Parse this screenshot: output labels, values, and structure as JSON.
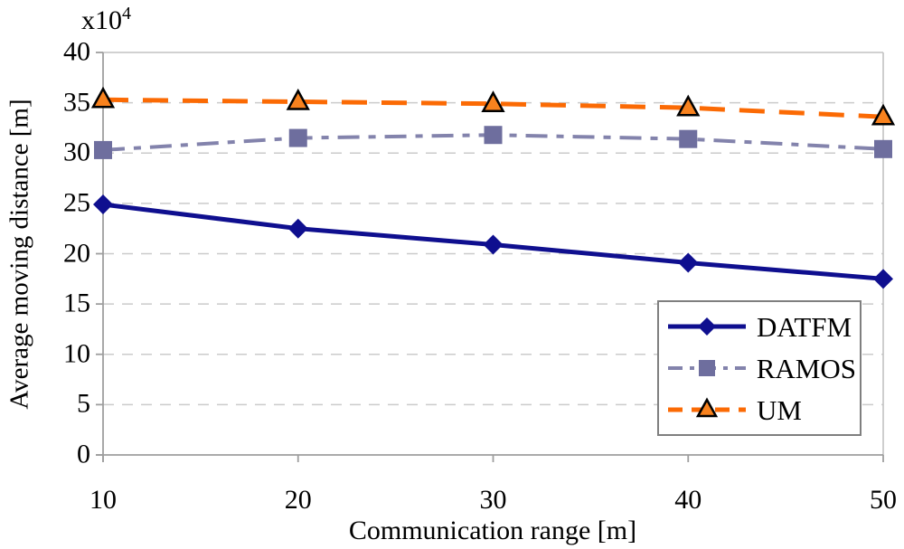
{
  "figure": {
    "background": "#FFFFFF",
    "unit_label": {
      "base": "x10",
      "exponent": "4"
    }
  },
  "chart_data": {
    "type": "line",
    "title": "",
    "xlabel": "Communication range [m]",
    "ylabel": "Average moving distance [m]",
    "y_unit_note": "values are in units of 10^4 m, axis annotated x10^4",
    "x": [
      10,
      20,
      30,
      40,
      50
    ],
    "xticks": [
      "10",
      "20",
      "30",
      "40",
      "50"
    ],
    "yticks": [
      "0",
      "5",
      "10",
      "15",
      "20",
      "25",
      "30",
      "35",
      "40"
    ],
    "ytick_values": [
      0,
      5,
      10,
      15,
      20,
      25,
      30,
      35,
      40
    ],
    "xlim": [
      10,
      50
    ],
    "ylim": [
      0,
      40
    ],
    "grid": "horizontal dashed gridlines",
    "legend_position": "lower right",
    "axis_color": "#9E9E9E",
    "frame_color": "#C2C2C2",
    "gridline_color": "#CBCBCB",
    "series": [
      {
        "name": "DATFM",
        "values": [
          24.9,
          22.5,
          20.9,
          19.1,
          17.5
        ],
        "color": "#0F0F8F",
        "marker_color": "#0F0F8F",
        "marker": "diamond",
        "line_style": "solid"
      },
      {
        "name": "RAMOS",
        "values": [
          30.3,
          31.5,
          31.8,
          31.4,
          30.4
        ],
        "color": "#8383AC",
        "marker_color": "#6E6E9E",
        "marker": "square",
        "line_style": "dash-dot"
      },
      {
        "name": "UM",
        "values": [
          35.3,
          35.1,
          34.9,
          34.5,
          33.6
        ],
        "color": "#FB6A04",
        "marker_color": "#F8821E",
        "marker_outline": "#000000",
        "marker": "triangle",
        "line_style": "dashed"
      }
    ]
  }
}
